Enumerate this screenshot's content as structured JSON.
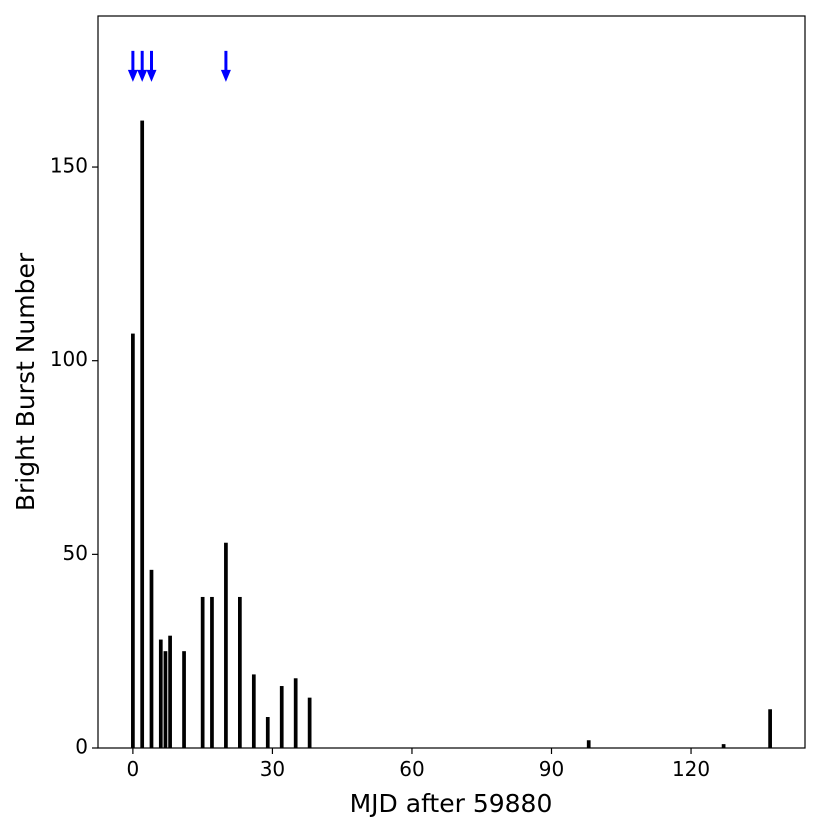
{
  "chart_data": {
    "type": "bar",
    "x": [
      0,
      2,
      4,
      6,
      7,
      8,
      11,
      15,
      17,
      20,
      23,
      26,
      29,
      32,
      35,
      38,
      98,
      127,
      137
    ],
    "values": [
      107,
      162,
      46,
      28,
      25,
      29,
      25,
      39,
      39,
      53,
      39,
      19,
      8,
      16,
      18,
      13,
      2,
      1,
      10
    ],
    "color": "#000000",
    "bar_width": 0.8,
    "xlabel": "MJD after 59880",
    "ylabel": "Bright Burst Number",
    "xlim": [
      -7.5,
      144.5
    ],
    "ylim": [
      0,
      189
    ],
    "xticks": [
      0,
      30,
      60,
      90,
      120
    ],
    "yticks": [
      0,
      50,
      100,
      150
    ],
    "arrows": {
      "x": [
        0,
        2,
        4,
        20
      ],
      "from": 180,
      "to": 172,
      "color": "#0000ff"
    }
  }
}
